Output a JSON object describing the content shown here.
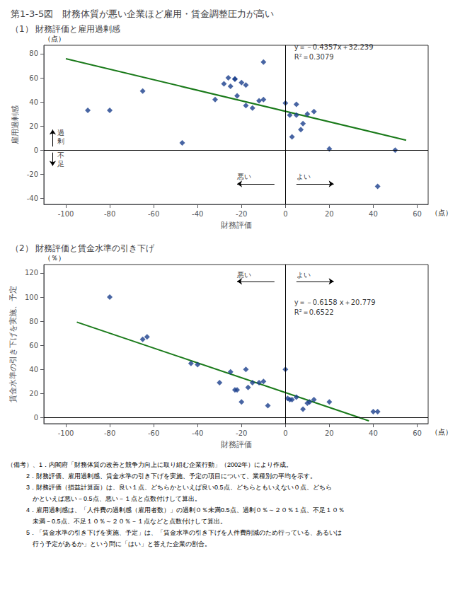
{
  "title": "第1-3-5図　財務体質が悪い企業ほど雇用・賃金調整圧力が高い",
  "notes": [
    "（備考）、1．内閣府「財務体質の改善と競争力向上に取り組む企業行動」（2002年）により作成。",
    "　　　2．財務評価、雇用過剰感、賃金水準の引き下げを実施、予定の項目について、業種別の平均を示す。",
    "　　　3．財務評価（損益計算面）は、良い１点、どちらかといえば良い0.5点、どちらともいえない０点、どちら",
    "　　　　かといえば悪い－0.5点、悪い－１点と点数付けして算出。",
    "　　　4．雇用過剰感は、「人件費の過剰感（雇用者数）」の過剰０％未満0.5点、過剰０％～２０％１点、不足１０％",
    "　　　　未満－0.5点、不足１０％～２０％－１点などと点数付けして算出。",
    "　　　5．「賃金水準の引き下げを実施、予定」は、「賃金水準の引き下げを人件費削減のため行っている、あるいは",
    "　　　　行う予定があるか」という問に「はい」と答えた企業の割合。"
  ],
  "chart_data": [
    {
      "type": "scatter",
      "title": "（1） 財務評価と雇用過剰感",
      "xlabel": "財務評価",
      "ylabel": "雇用過剰感",
      "x_unit": "（点）",
      "y_unit": "（点）",
      "xlim": [
        -110,
        65
      ],
      "ylim": [
        -45,
        87
      ],
      "xticks": [
        -100,
        -80,
        -60,
        -40,
        -20,
        0,
        20,
        40,
        60
      ],
      "yticks": [
        -40,
        -20,
        0,
        20,
        40,
        60,
        80
      ],
      "grid": false,
      "series": [
        {
          "type": "line",
          "color": "#1A7A1A",
          "line_style": "solid",
          "x": [
            -100,
            55
          ],
          "values": [
            75.809,
            8.2755
          ]
        },
        {
          "type": "scatter",
          "color": "#1A3E8C",
          "marker": "diamond",
          "x": [
            -90,
            -80,
            -65,
            -47,
            -32,
            -28,
            -26,
            -25,
            -23,
            -23,
            -22,
            -20,
            -18,
            -18,
            -15,
            -12,
            -10,
            -10,
            0,
            2,
            3,
            5,
            5,
            7,
            8,
            10,
            13,
            20,
            42,
            50
          ],
          "values": [
            33,
            33,
            49,
            6,
            42,
            55,
            60,
            53,
            59,
            59,
            45,
            56,
            54,
            37,
            35,
            41,
            73,
            42,
            39,
            29,
            11,
            38,
            29,
            17,
            22,
            30,
            32,
            1,
            -30,
            0
          ]
        }
      ],
      "annotations": [
        {
          "text": "y＝－0.4357x＋32.239",
          "x": 4,
          "y": 82
        },
        {
          "text": "R²＝0.3079",
          "x": 4,
          "y": 74
        },
        {
          "text": "過\n剰",
          "x": -104,
          "y": 11
        },
        {
          "text": "不\n足",
          "x": -104,
          "y": -8
        },
        {
          "text": "悪い",
          "x": -22,
          "y": -25.5
        },
        {
          "text": "よい",
          "x": 5,
          "y": -25.5
        }
      ],
      "arrows": [
        {
          "from": [
            -106,
            3
          ],
          "to": [
            -106,
            17
          ]
        },
        {
          "from": [
            -106,
            -2
          ],
          "to": [
            -106,
            -13
          ]
        },
        {
          "from": [
            -5,
            -28
          ],
          "to": [
            -22,
            -28
          ]
        },
        {
          "from": [
            5,
            -28
          ],
          "to": [
            22,
            -28
          ]
        }
      ]
    },
    {
      "type": "scatter",
      "title": "（2） 財務評価と賃金水準の引き下げ",
      "xlabel": "財務評価",
      "ylabel": "賃金水準の引き下げを実施、予定",
      "x_unit": "（点）",
      "y_unit": "（％）",
      "xlim": [
        -110,
        65
      ],
      "ylim": [
        -5,
        127
      ],
      "xticks": [
        -100,
        -80,
        -60,
        -40,
        -20,
        0,
        20,
        40,
        60
      ],
      "yticks": [
        0,
        20,
        40,
        60,
        80,
        100,
        120
      ],
      "grid": false,
      "series": [
        {
          "type": "line",
          "color": "#1A7A1A",
          "line_style": "solid",
          "x": [
            -95,
            38
          ],
          "values": [
            79.28,
            -2.6214
          ]
        },
        {
          "type": "scatter",
          "color": "#1A3E8C",
          "marker": "diamond",
          "x": [
            -80,
            -65,
            -63,
            -43,
            -40,
            -30,
            -25,
            -23,
            -22,
            -20,
            -18,
            -17,
            -15,
            -12,
            -10,
            -8,
            0,
            1,
            2,
            3,
            5,
            8,
            10,
            11,
            13,
            20,
            40,
            42
          ],
          "values": [
            100,
            65,
            67,
            45,
            44,
            29,
            38,
            23,
            23,
            13,
            40,
            25,
            29,
            29,
            30,
            10,
            40,
            16,
            15,
            15,
            17,
            7,
            12,
            13,
            15,
            13,
            5,
            5
          ]
        }
      ],
      "annotations": [
        {
          "text": "y＝－0.6158 x＋20.779",
          "x": 4,
          "y": 92
        },
        {
          "text": "R²＝0.6522",
          "x": 4,
          "y": 84
        },
        {
          "text": "悪い",
          "x": -22,
          "y": 115
        },
        {
          "text": "よい",
          "x": 5,
          "y": 115
        }
      ],
      "arrows": [
        {
          "from": [
            -5,
            113
          ],
          "to": [
            -22,
            113
          ]
        },
        {
          "from": [
            5,
            113
          ],
          "to": [
            22,
            113
          ]
        }
      ]
    }
  ]
}
